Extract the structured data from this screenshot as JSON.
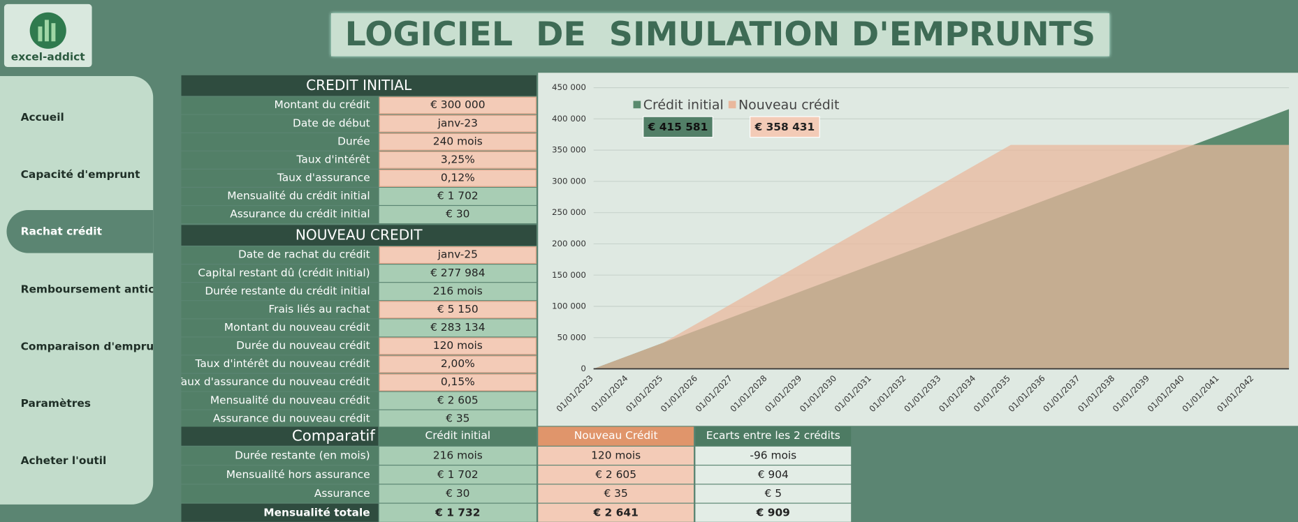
{
  "header": {
    "logo_text": "excel-addict",
    "title": "LOGICIEL  DE  SIMULATION D'EMPRUNTS"
  },
  "nav": {
    "items": [
      "Accueil",
      "Capacité d'emprunt",
      "Rachat crédit",
      "Remboursement anticipé",
      "Comparaison d'emprunts",
      "Paramètres",
      "Acheter l'outil"
    ],
    "active": 2
  },
  "initial": {
    "title": "CREDIT  INITIAL",
    "rows": [
      {
        "label": "Montant du crédit",
        "value": "€ 300 000",
        "input": true
      },
      {
        "label": "Date de début",
        "value": "janv-23",
        "input": true
      },
      {
        "label": "Durée",
        "value": "240 mois",
        "input": true
      },
      {
        "label": "Taux d'intérêt",
        "value": "3,25%",
        "input": true
      },
      {
        "label": "Taux d'assurance",
        "value": "0,12%",
        "input": true
      },
      {
        "label": "Mensualité du crédit initial",
        "value": "€ 1 702",
        "input": false
      },
      {
        "label": "Assurance du crédit initial",
        "value": "€ 30",
        "input": false
      }
    ]
  },
  "nouveau": {
    "title": "NOUVEAU  CREDIT",
    "rows": [
      {
        "label": "Date de rachat du crédit",
        "value": "janv-25",
        "input": true
      },
      {
        "label": "Capital restant dû (crédit initial)",
        "value": "€ 277 984",
        "input": false
      },
      {
        "label": "Durée restante du crédit initial",
        "value": "216 mois",
        "input": false
      },
      {
        "label": "Frais liés au rachat",
        "value": "€ 5 150",
        "input": true
      },
      {
        "label": "Montant du nouveau crédit",
        "value": "€ 283 134",
        "input": false
      },
      {
        "label": "Durée du nouveau crédit",
        "value": "120 mois",
        "input": true
      },
      {
        "label": "Taux d'intérêt du nouveau crédit",
        "value": "2,00%",
        "input": true
      },
      {
        "label": "Taux d'assurance du nouveau crédit",
        "value": "0,15%",
        "input": true
      },
      {
        "label": "Mensualité du nouveau crédit",
        "value": "€ 2 605",
        "input": false
      },
      {
        "label": "Assurance du nouveau crédit",
        "value": "€ 35",
        "input": false
      }
    ]
  },
  "comparatif": {
    "title": "Comparatif",
    "columns": [
      "Crédit initial",
      "Nouveau Crédit",
      "Ecarts entre les 2 crédits"
    ],
    "rows": [
      [
        "Durée restante (en mois)",
        "216 mois",
        "120 mois",
        "-96 mois"
      ],
      [
        "Mensualité hors assurance",
        "€ 1 702",
        "€ 2 605",
        "€ 904"
      ],
      [
        "Assurance",
        "€ 30",
        "€ 35",
        "€ 5"
      ],
      [
        "Mensualité totale",
        "€ 1 732",
        "€ 2 641",
        "€ 909"
      ]
    ]
  },
  "chart": {
    "type": "area",
    "categories": [
      "01/01/2023",
      "01/01/2024",
      "01/01/2025",
      "01/01/2026",
      "01/01/2027",
      "01/01/2028",
      "01/01/2029",
      "01/01/2030",
      "01/01/2031",
      "01/01/2032",
      "01/01/2033",
      "01/01/2034",
      "01/01/2035",
      "01/01/2036",
      "01/01/2037",
      "01/01/2038",
      "01/01/2039",
      "01/01/2040",
      "01/01/2041",
      "01/01/2042",
      null
    ],
    "series": [
      {
        "name": "Crédit initial",
        "color": "#5a8a6e",
        "total_label": "€ 415 581",
        "values": [
          0,
          20779,
          41558,
          62337,
          83116,
          103895,
          124674,
          145453,
          166232,
          187011,
          207790,
          228569,
          249348,
          270127,
          290906,
          311685,
          332464,
          353243,
          374022,
          394801,
          415581
        ]
      },
      {
        "name": "Nouveau crédit",
        "color": "#e9b89d",
        "total_label": "€ 358 431",
        "values": [
          0,
          20784,
          41568,
          73260,
          104952,
          136644,
          168336,
          200028,
          231720,
          263412,
          295104,
          326796,
          358431,
          358431,
          358431,
          358431,
          358431,
          358431,
          358431,
          358431,
          358431
        ]
      }
    ],
    "ylim": [
      0,
      450000
    ],
    "yticks": [
      {
        "value": 0,
        "label": "0"
      },
      {
        "value": 50000,
        "label": "50 000"
      },
      {
        "value": 100000,
        "label": "100 000"
      },
      {
        "value": 150000,
        "label": "150 000"
      },
      {
        "value": 200000,
        "label": "200 000"
      },
      {
        "value": 250000,
        "label": "250 000"
      },
      {
        "value": 300000,
        "label": "300 000"
      },
      {
        "value": 350000,
        "label": "350 000"
      },
      {
        "value": 400000,
        "label": "400 000"
      },
      {
        "value": 450000,
        "label": "450 000"
      }
    ],
    "grid": true
  }
}
